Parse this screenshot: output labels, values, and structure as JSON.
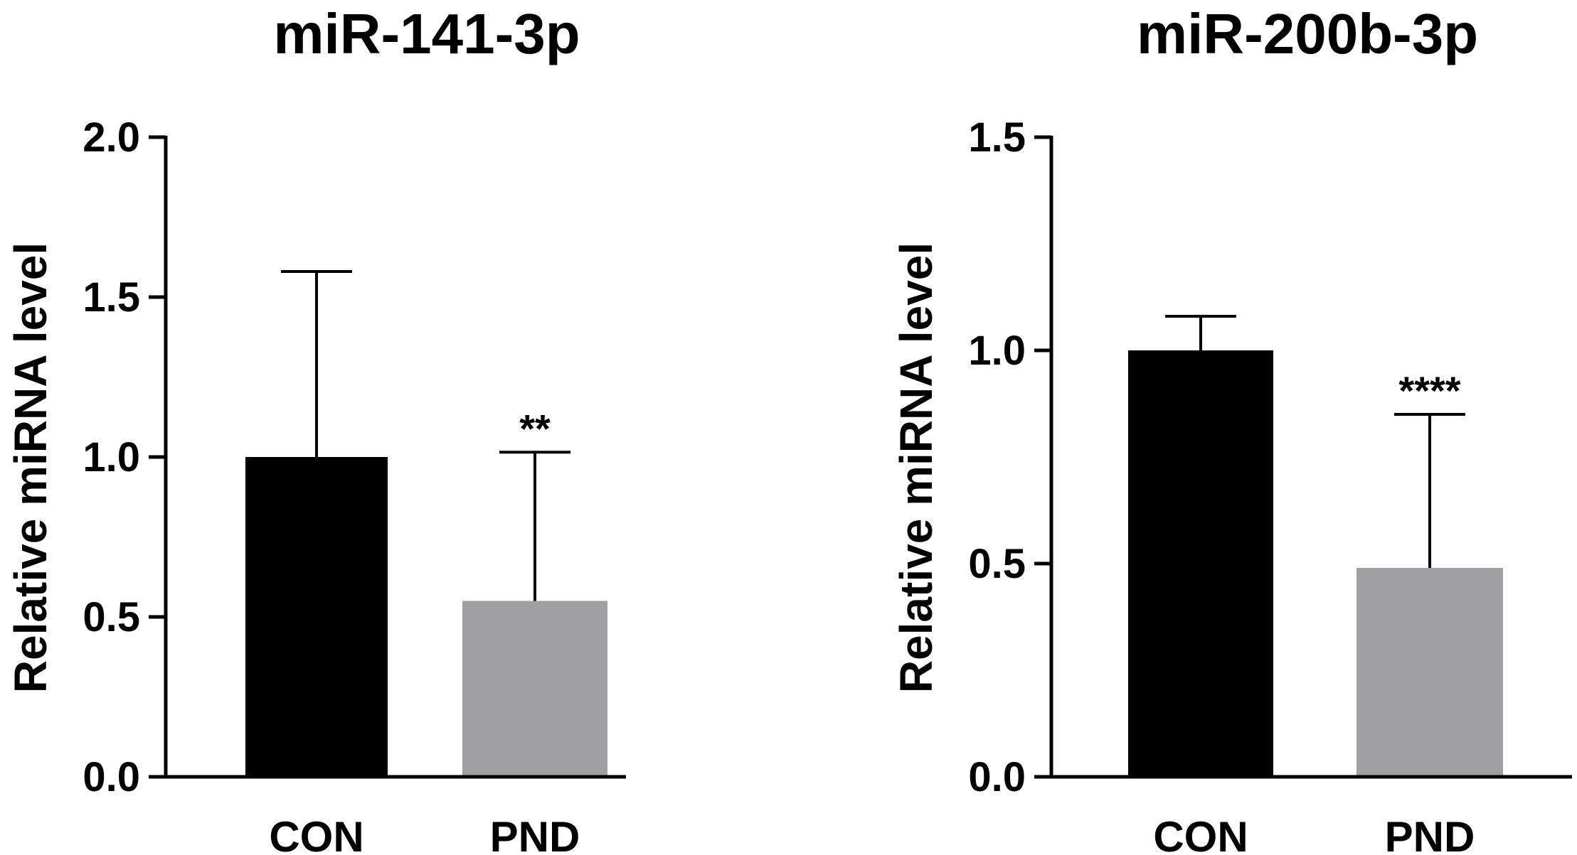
{
  "chart_data": [
    {
      "type": "bar",
      "title": "miR-141-3p",
      "ylabel": "Relative miRNA level",
      "xlabel": "",
      "categories": [
        "CON",
        "PND"
      ],
      "values": [
        1.0,
        0.55
      ],
      "error": [
        0.58,
        0.465
      ],
      "colors": [
        "#000000",
        "#a0a0a3"
      ],
      "significance": [
        "",
        "**"
      ],
      "ylim": [
        0,
        2.0
      ],
      "yticks": [
        0,
        0.5,
        1.0,
        1.5,
        2.0
      ],
      "ytick_labels": [
        "0.0",
        "0.5",
        "1.0",
        "1.5",
        "2.0"
      ],
      "grid": false
    },
    {
      "type": "bar",
      "title": "miR-200b-3p",
      "ylabel": "Relative miRNA level",
      "xlabel": "",
      "categories": [
        "CON",
        "PND"
      ],
      "values": [
        1.0,
        0.49
      ],
      "error": [
        0.08,
        0.36
      ],
      "colors": [
        "#000000",
        "#a0a0a3"
      ],
      "significance": [
        "",
        "****"
      ],
      "ylim": [
        0,
        1.5
      ],
      "yticks": [
        0,
        0.5,
        1.0,
        1.5
      ],
      "ytick_labels": [
        "0.0",
        "0.5",
        "1.0",
        "1.5"
      ],
      "grid": false
    }
  ]
}
